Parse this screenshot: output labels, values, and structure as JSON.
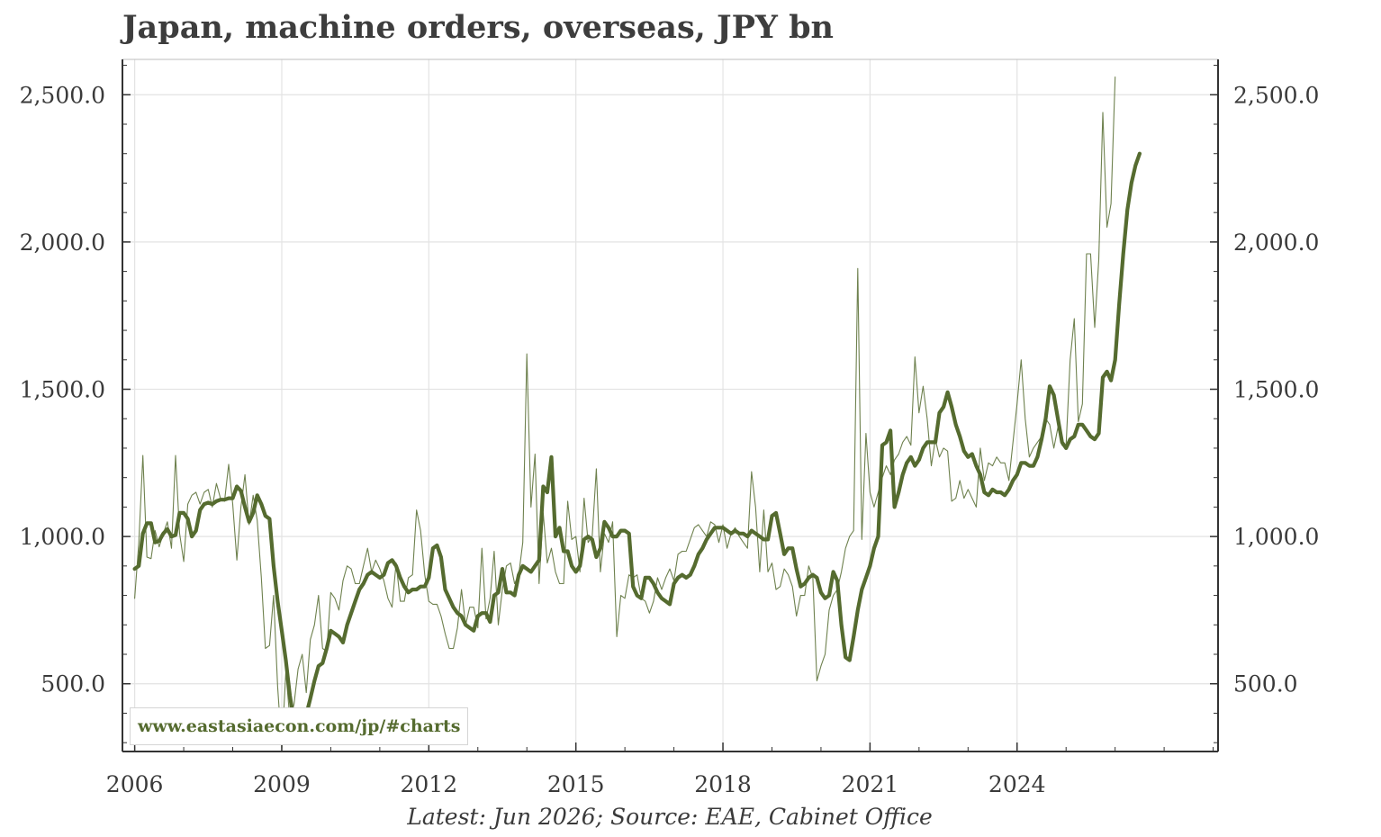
{
  "chart_data": {
    "type": "line",
    "title": "Japan, machine orders, overseas, JPY bn",
    "xlabel": "",
    "ylabel": "",
    "x_ticks": [
      "2006",
      "2009",
      "2012",
      "2015",
      "2018",
      "2021",
      "2024"
    ],
    "y_ticks": [
      "500.0",
      "1,000.0",
      "1,500.0",
      "2,000.0",
      "2,500.0"
    ],
    "ylim": [
      270,
      2620
    ],
    "xlim": [
      2005.75,
      2028.1
    ],
    "grid": true,
    "dual_y_axis": true,
    "line_color": "#556b2f",
    "series": [
      {
        "role": "monthly",
        "x_start": "2006-01",
        "frequency": "monthly",
        "values": [
          790,
          980,
          1275,
          930,
          925,
          1020,
          965,
          1010,
          1050,
          960,
          1275,
          1010,
          915,
          1110,
          1140,
          1150,
          1110,
          1150,
          1160,
          1100,
          1180,
          1130,
          1120,
          1245,
          1110,
          920,
          1100,
          1210,
          1040,
          1140,
          1055,
          860,
          620,
          630,
          800,
          490,
          280,
          540,
          380,
          430,
          550,
          600,
          470,
          650,
          700,
          800,
          620,
          610,
          810,
          790,
          750,
          850,
          900,
          890,
          840,
          840,
          900,
          960,
          880,
          920,
          890,
          850,
          790,
          760,
          910,
          780,
          780,
          860,
          870,
          1090,
          1020,
          870,
          780,
          770,
          770,
          730,
          670,
          620,
          620,
          690,
          820,
          700,
          760,
          760,
          690,
          960,
          720,
          790,
          950,
          700,
          820,
          900,
          910,
          840,
          870,
          980,
          1620,
          1100,
          1280,
          840,
          1080,
          910,
          960,
          880,
          840,
          840,
          1120,
          990,
          1000,
          880,
          1130,
          980,
          1000,
          1230,
          880,
          1010,
          980,
          1050,
          660,
          800,
          790,
          870,
          860,
          870,
          790,
          780,
          740,
          780,
          860,
          820,
          860,
          890,
          850,
          940,
          950,
          950,
          990,
          1030,
          1040,
          1020,
          1000,
          1050,
          1040,
          980,
          1040,
          960,
          1010,
          1030,
          1000,
          980,
          960,
          1220,
          1100,
          880,
          1090,
          880,
          910,
          820,
          830,
          890,
          870,
          830,
          730,
          800,
          800,
          900,
          860,
          510,
          560,
          600,
          750,
          800,
          820,
          880,
          960,
          1000,
          1020,
          1910,
          990,
          1350,
          1150,
          1100,
          1150,
          1200,
          1240,
          1210,
          1260,
          1280,
          1320,
          1340,
          1310,
          1610,
          1420,
          1510,
          1400,
          1240,
          1330,
          1270,
          1300,
          1290,
          1120,
          1130,
          1190,
          1130,
          1160,
          1130,
          1100,
          1300,
          1190,
          1250,
          1240,
          1270,
          1250,
          1250,
          1190,
          1320,
          1450,
          1600,
          1400,
          1270,
          1300,
          1320,
          1340,
          1400,
          1380,
          1300,
          1370,
          1310,
          1310,
          1600,
          1740,
          1390,
          1450,
          1960,
          1960,
          1710,
          1940,
          2440,
          2050,
          2130,
          2560
        ]
      },
      {
        "role": "moving-average",
        "x_start": "2006-01",
        "frequency": "monthly",
        "values": [
          890,
          900,
          1010,
          1045,
          1045,
          980,
          985,
          1010,
          1025,
          1000,
          1005,
          1080,
          1080,
          1060,
          1000,
          1020,
          1090,
          1110,
          1115,
          1110,
          1120,
          1125,
          1125,
          1130,
          1130,
          1170,
          1155,
          1100,
          1050,
          1080,
          1140,
          1110,
          1070,
          1060,
          900,
          780,
          680,
          580,
          460,
          370,
          380,
          390,
          395,
          450,
          510,
          560,
          570,
          620,
          680,
          670,
          660,
          640,
          700,
          740,
          780,
          820,
          840,
          870,
          880,
          870,
          860,
          870,
          910,
          920,
          900,
          860,
          830,
          810,
          820,
          820,
          830,
          830,
          860,
          960,
          970,
          930,
          820,
          790,
          760,
          740,
          730,
          700,
          690,
          680,
          730,
          740,
          740,
          710,
          800,
          810,
          890,
          810,
          810,
          800,
          870,
          900,
          890,
          880,
          900,
          920,
          1170,
          1150,
          1270,
          1000,
          1030,
          950,
          950,
          900,
          880,
          900,
          990,
          1000,
          990,
          930,
          960,
          1050,
          1030,
          1000,
          1000,
          1020,
          1020,
          1010,
          830,
          800,
          790,
          860,
          860,
          840,
          810,
          790,
          780,
          770,
          840,
          860,
          870,
          860,
          870,
          900,
          940,
          960,
          990,
          1010,
          1030,
          1030,
          1030,
          1020,
          1010,
          1020,
          1010,
          1010,
          1000,
          1020,
          1010,
          1000,
          990,
          990,
          1070,
          1080,
          1010,
          940,
          960,
          960,
          890,
          830,
          840,
          860,
          870,
          860,
          810,
          790,
          800,
          880,
          850,
          700,
          590,
          580,
          660,
          750,
          820,
          860,
          900,
          960,
          1000,
          1310,
          1320,
          1360,
          1100,
          1150,
          1210,
          1250,
          1270,
          1240,
          1260,
          1300,
          1320,
          1320,
          1320,
          1420,
          1440,
          1490,
          1440,
          1380,
          1340,
          1290,
          1270,
          1280,
          1240,
          1210,
          1150,
          1140,
          1160,
          1150,
          1150,
          1140,
          1160,
          1190,
          1210,
          1250,
          1250,
          1240,
          1240,
          1270,
          1330,
          1400,
          1510,
          1480,
          1400,
          1320,
          1300,
          1330,
          1340,
          1380,
          1380,
          1360,
          1340,
          1330,
          1350,
          1540,
          1560,
          1530,
          1600,
          1790,
          1960,
          2110,
          2200,
          2260,
          2300
        ]
      }
    ]
  },
  "watermark_text": "www.eastasiaecon.com/jp/#charts",
  "footer_note": "Latest: Jun 2026; Source: EAE, Cabinet Office"
}
